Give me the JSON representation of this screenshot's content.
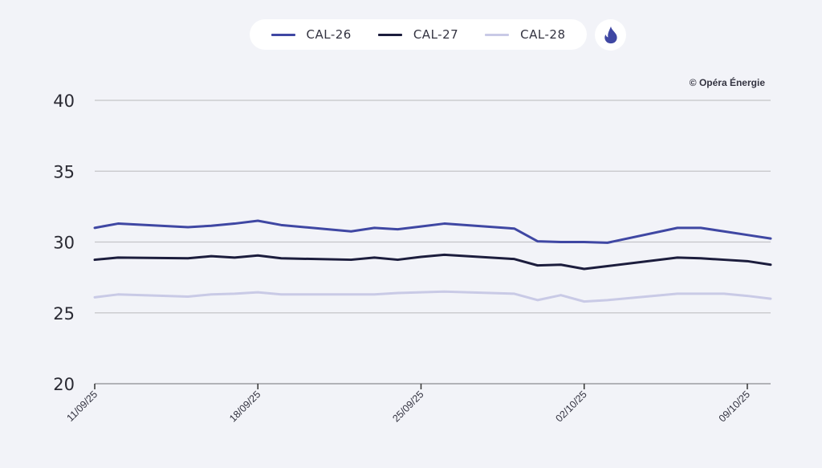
{
  "legend": {
    "items": [
      {
        "label": "CAL-26",
        "color": "#3f47a3"
      },
      {
        "label": "CAL-27",
        "color": "#1c1d3d"
      },
      {
        "label": "CAL-28",
        "color": "#c9cae6"
      }
    ],
    "energy_icon": "flame-icon",
    "energy_icon_color": "#3f47a3"
  },
  "copyright": "© Opéra Énergie",
  "chart_data": {
    "type": "line",
    "title": "",
    "xlabel": "",
    "ylabel": "",
    "ylim": [
      20,
      40
    ],
    "yticks": [
      20,
      25,
      30,
      35,
      40
    ],
    "grid": "horizontal",
    "legend_position": "top-center",
    "x": [
      "11/09/25",
      "12/09/25",
      "15/09/25",
      "16/09/25",
      "17/09/25",
      "18/09/25",
      "19/09/25",
      "22/09/25",
      "23/09/25",
      "24/09/25",
      "25/09/25",
      "26/09/25",
      "29/09/25",
      "30/09/25",
      "01/10/25",
      "02/10/25",
      "03/10/25",
      "06/10/25",
      "07/10/25",
      "08/10/25",
      "09/10/25",
      "10/10/25"
    ],
    "x_day_offsets": [
      0,
      1,
      4,
      5,
      6,
      7,
      8,
      11,
      12,
      13,
      14,
      15,
      18,
      19,
      20,
      21,
      22,
      25,
      26,
      27,
      28,
      29
    ],
    "x_range_days": [
      0,
      29
    ],
    "xtick_labels": [
      "11/09/25",
      "18/09/25",
      "25/09/25",
      "02/10/25",
      "09/10/25"
    ],
    "xtick_day_offsets": [
      0,
      7,
      14,
      21,
      28
    ],
    "series": [
      {
        "name": "CAL-26",
        "color": "#3f47a3",
        "values": [
          31.0,
          31.3,
          31.05,
          31.15,
          31.3,
          31.5,
          31.2,
          30.75,
          31.0,
          30.9,
          31.1,
          31.3,
          30.95,
          30.05,
          30.0,
          30.0,
          29.95,
          31.0,
          31.0,
          30.75,
          30.5,
          30.25
        ]
      },
      {
        "name": "CAL-27",
        "color": "#1c1d3d",
        "values": [
          28.75,
          28.9,
          28.85,
          29.0,
          28.9,
          29.05,
          28.85,
          28.75,
          28.9,
          28.75,
          28.95,
          29.1,
          28.8,
          28.35,
          28.4,
          28.1,
          28.3,
          28.9,
          28.85,
          28.75,
          28.65,
          28.4
        ]
      },
      {
        "name": "CAL-28",
        "color": "#c9cae6",
        "values": [
          26.1,
          26.3,
          26.15,
          26.3,
          26.35,
          26.45,
          26.3,
          26.3,
          26.3,
          26.4,
          26.45,
          26.5,
          26.35,
          25.9,
          26.25,
          25.8,
          25.9,
          26.35,
          26.35,
          26.35,
          26.2,
          26.0
        ]
      }
    ]
  }
}
